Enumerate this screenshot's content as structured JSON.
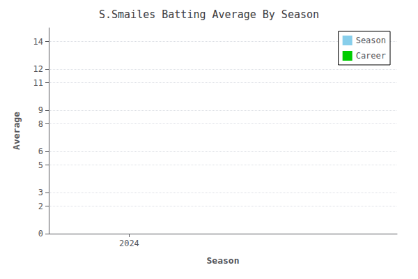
{
  "chart_data": {
    "type": "bar",
    "title": "S.Smailes Batting Average By Season",
    "xlabel": "Season",
    "ylabel": "Average",
    "x": [],
    "series": [
      {
        "name": "Season",
        "color": "#87CEEB",
        "values": []
      },
      {
        "name": "Career",
        "color": "#00cc00",
        "values": []
      }
    ],
    "xlim": [
      2023.7,
      2025.0
    ],
    "xticks": [
      2024
    ],
    "ylim": [
      0,
      15
    ],
    "yticks": [
      0,
      2,
      3,
      5,
      6,
      8,
      9,
      11,
      12,
      14
    ],
    "grid": true,
    "legend": "upper right"
  }
}
